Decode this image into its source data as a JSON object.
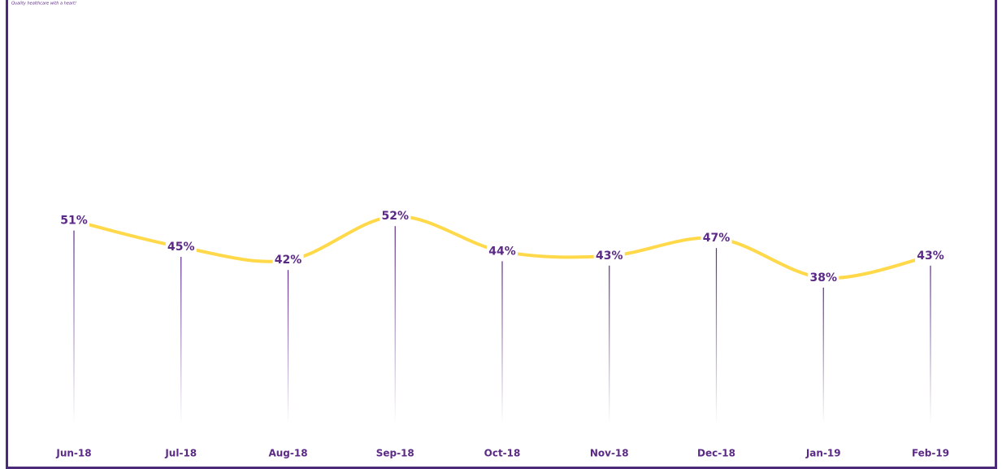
{
  "tagline": "Quality healthcare with a heart!",
  "chart_data": {
    "type": "line",
    "categories": [
      "Jun-18",
      "Jul-18",
      "Aug-18",
      "Sep-18",
      "Oct-18",
      "Nov-18",
      "Dec-18",
      "Jan-19",
      "Feb-19"
    ],
    "values": [
      51,
      45,
      42,
      52,
      44,
      43,
      47,
      38,
      43
    ],
    "value_labels": [
      "51%",
      "45%",
      "42%",
      "52%",
      "44%",
      "43%",
      "47%",
      "38%",
      "43%"
    ],
    "color": "#ffd94a",
    "label_color": "#5b2a86",
    "smooth": true
  }
}
